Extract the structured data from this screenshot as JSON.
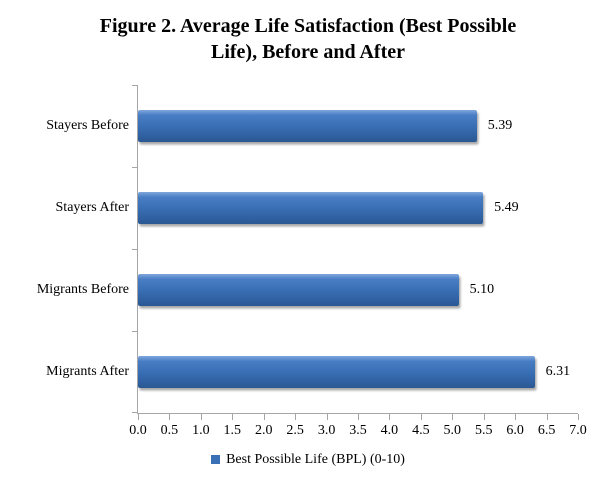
{
  "chart_data": {
    "type": "bar",
    "orientation": "horizontal",
    "title": "Figure 2. Average Life Satisfaction (Best Possible Life), Before and After",
    "title_lines": [
      "Figure 2. Average Life Satisfaction (Best Possible",
      "Life), Before and After"
    ],
    "categories": [
      "Stayers Before",
      "Stayers After",
      "Migrants Before",
      "Migrants After"
    ],
    "values": [
      5.39,
      5.49,
      5.1,
      6.31
    ],
    "data_labels": [
      "5.39",
      "5.49",
      "5.10",
      "6.31"
    ],
    "xlabel": "",
    "ylabel": "",
    "xlim": [
      0,
      7
    ],
    "xtick_interval": 0.5,
    "x_ticks": [
      "0.0",
      "0.5",
      "1.0",
      "1.5",
      "2.0",
      "2.5",
      "3.0",
      "3.5",
      "4.0",
      "4.5",
      "5.0",
      "5.5",
      "6.0",
      "6.5",
      "7.0"
    ],
    "grid": false,
    "legend": {
      "label": "Best Possible Life (BPL) (0-10)",
      "position": "bottom"
    },
    "colors": {
      "bar": "#3A70B6",
      "bar_gradient_top": "#7FA7DD",
      "bar_gradient_mid": "#3A70B6",
      "bar_gradient_bottom": "#2A5892",
      "axis": "#A6A6A6",
      "text": "#000000",
      "background": "#FFFFFF"
    }
  }
}
